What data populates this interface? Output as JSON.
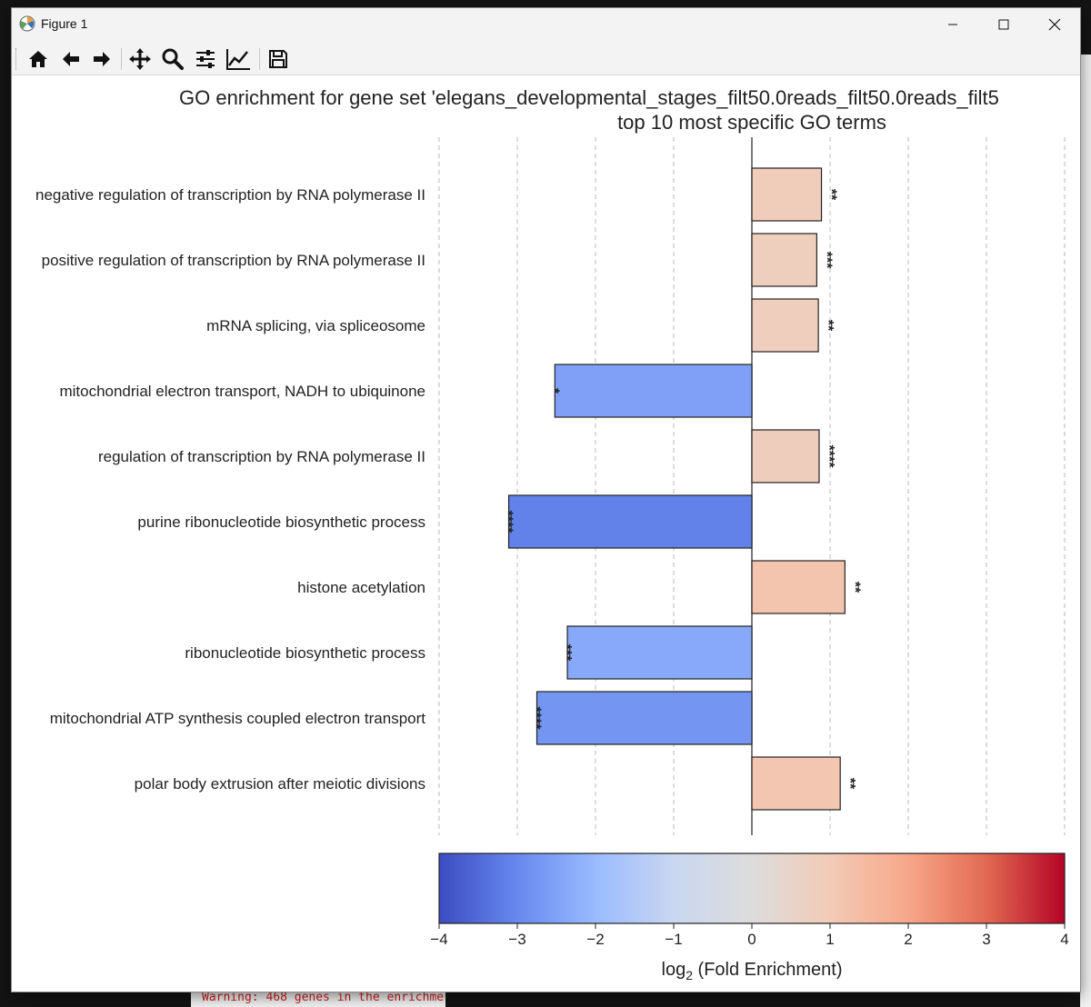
{
  "window": {
    "title": "Figure 1",
    "minimize_label": "Minimize",
    "maximize_label": "Maximize",
    "close_label": "Close"
  },
  "toolbar": {
    "buttons": [
      "home-icon",
      "back-arrow-icon",
      "forward-arrow-icon",
      "pan-icon",
      "zoom-icon",
      "configure-subplots-icon",
      "edit-axis-icon",
      "save-icon"
    ]
  },
  "background": {
    "console_warning": "Warning: 468 genes in the enrichme"
  },
  "chart_data": {
    "type": "bar",
    "orientation": "horizontal",
    "title_line1": "GO enrichment for gene set 'elegans_developmental_stages_filt50.0reads_filt50.0reads_filt5",
    "title_line2": "top 10 most specific GO terms",
    "categories": [
      "negative regulation of transcription by RNA polymerase II",
      "positive regulation of transcription by RNA polymerase II",
      "mRNA splicing, via spliceosome",
      "mitochondrial electron transport, NADH to ubiquinone",
      "regulation of transcription by RNA polymerase II",
      "purine ribonucleotide biosynthetic process",
      "histone acetylation",
      "ribonucleotide biosynthetic process",
      "mitochondrial ATP synthesis coupled electron transport",
      "polar body extrusion after meiotic divisions"
    ],
    "values": [
      0.89,
      0.83,
      0.85,
      -2.52,
      0.86,
      -3.11,
      1.19,
      -2.36,
      -2.75,
      1.13
    ],
    "significance": [
      "**",
      "***",
      "**",
      "*",
      "****",
      "****",
      "**",
      "***",
      "****",
      "**"
    ],
    "xlim": [
      -4,
      4
    ],
    "xticks": [
      -4,
      -3,
      -2,
      -1,
      0,
      1,
      2,
      3,
      4
    ],
    "xtick_labels": [
      "−4",
      "−3",
      "−2",
      "−1",
      "0",
      "1",
      "2",
      "3",
      "4"
    ],
    "grid": "vertical dashed",
    "colormap": "coolwarm",
    "colorbar_label_main": "log",
    "colorbar_label_sub": "2",
    "colorbar_label_rest": " (Fold Enrichment)",
    "colors": {
      "cmap_stops": [
        "#3b4cc0",
        "#6788ee",
        "#9abbff",
        "#c9d7f0",
        "#dddcdc",
        "#f2cbb7",
        "#f7a789",
        "#e26952",
        "#b40426"
      ]
    }
  }
}
